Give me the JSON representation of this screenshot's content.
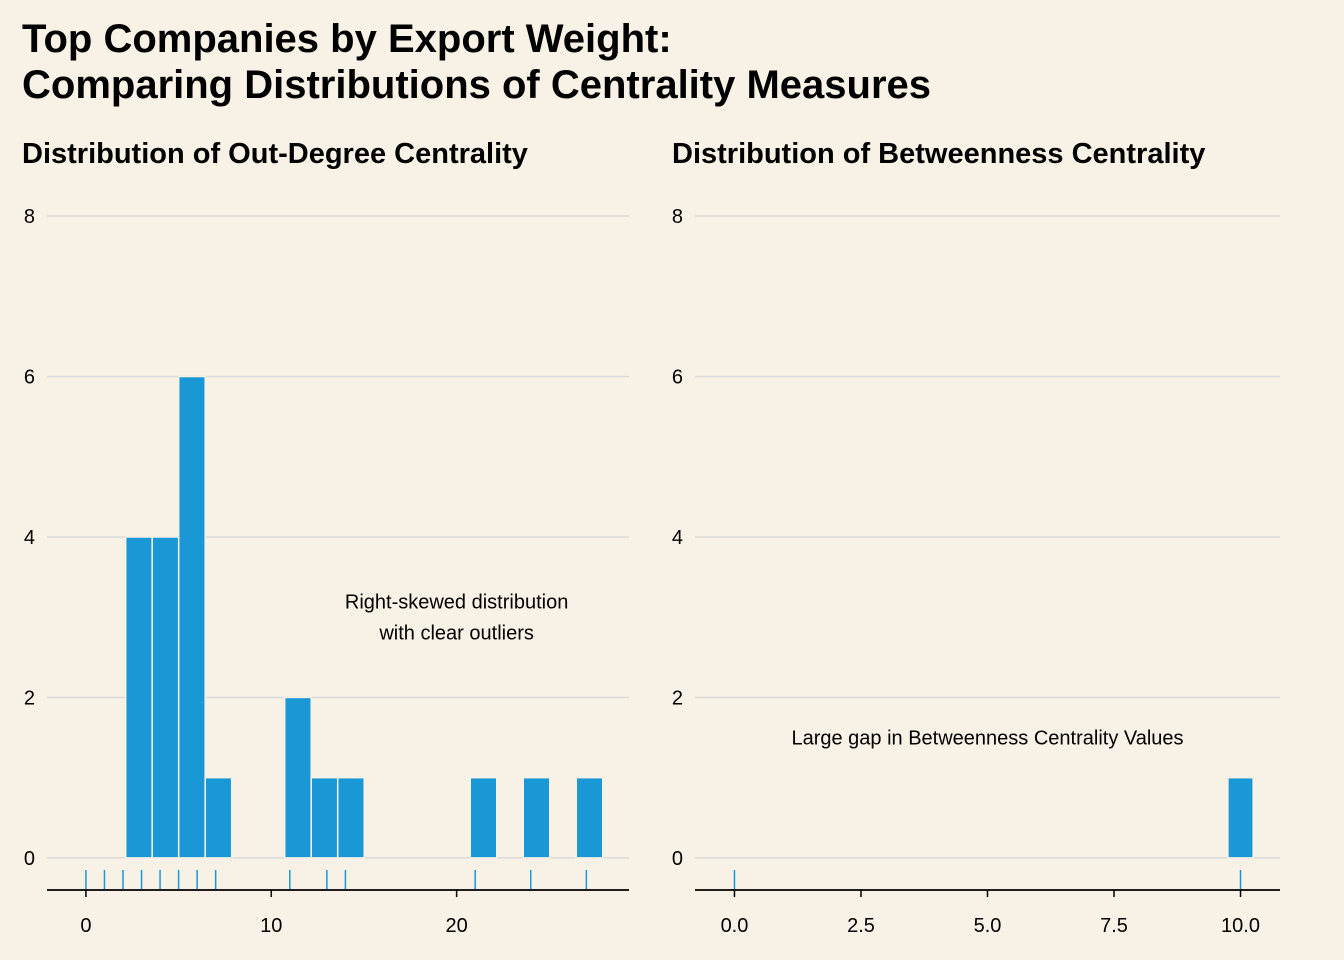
{
  "title": "Top Companies by Export Weight:\nComparing Distributions of Centrality Measures",
  "colors": {
    "bar": "#1a98d5",
    "background": "#f8f2e6",
    "grid": "#d9d9d9",
    "axis": "#000000"
  },
  "chart_data": [
    {
      "type": "bar",
      "title": "Distribution of Out-Degree Centrality",
      "xlabel": "",
      "ylabel": "",
      "xlim": [
        -2.1,
        29.3
      ],
      "ylim": [
        -0.4,
        8.2
      ],
      "x_ticks": [
        "0",
        "10",
        "20"
      ],
      "x_tick_values": [
        0,
        10,
        20
      ],
      "y_ticks": [
        "0",
        "2",
        "4",
        "6",
        "8"
      ],
      "y_tick_values": [
        0,
        2,
        4,
        6,
        8
      ],
      "grid": true,
      "bin_width": 1.43,
      "bins": [
        {
          "x": 2.86,
          "count": 4
        },
        {
          "x": 4.29,
          "count": 4
        },
        {
          "x": 5.72,
          "count": 6
        },
        {
          "x": 7.15,
          "count": 1
        },
        {
          "x": 11.44,
          "count": 2
        },
        {
          "x": 12.87,
          "count": 1
        },
        {
          "x": 14.3,
          "count": 1
        },
        {
          "x": 21.45,
          "count": 1
        },
        {
          "x": 24.31,
          "count": 1
        },
        {
          "x": 27.17,
          "count": 1
        }
      ],
      "rug": [
        0,
        1,
        2,
        3,
        4,
        5,
        6,
        7,
        11,
        13,
        14,
        21,
        24,
        27
      ],
      "annotation": {
        "lines": [
          "Right-skewed distribution",
          "with clear outliers"
        ],
        "x": 20,
        "y": 3
      }
    },
    {
      "type": "bar",
      "title": "Distribution of Betweenness Centrality",
      "xlabel": "",
      "ylabel": "",
      "xlim": [
        -0.78,
        10.78
      ],
      "ylim": [
        -0.4,
        8.2
      ],
      "x_ticks": [
        "0.0",
        "2.5",
        "5.0",
        "7.5",
        "10.0"
      ],
      "x_tick_values": [
        0,
        2.5,
        5,
        7.5,
        10
      ],
      "y_ticks": [
        "0",
        "2",
        "4",
        "6",
        "8"
      ],
      "y_tick_values": [
        0,
        2,
        4,
        6,
        8
      ],
      "grid": true,
      "bin_width": 0.5,
      "bins": [
        {
          "x": 0,
          "count": 0
        },
        {
          "x": 10,
          "count": 1
        }
      ],
      "rug": [
        0,
        10
      ],
      "annotation": {
        "lines": [
          "Large gap in Betweenness Centrality Values"
        ],
        "x": 5,
        "y": 1.5
      }
    }
  ]
}
